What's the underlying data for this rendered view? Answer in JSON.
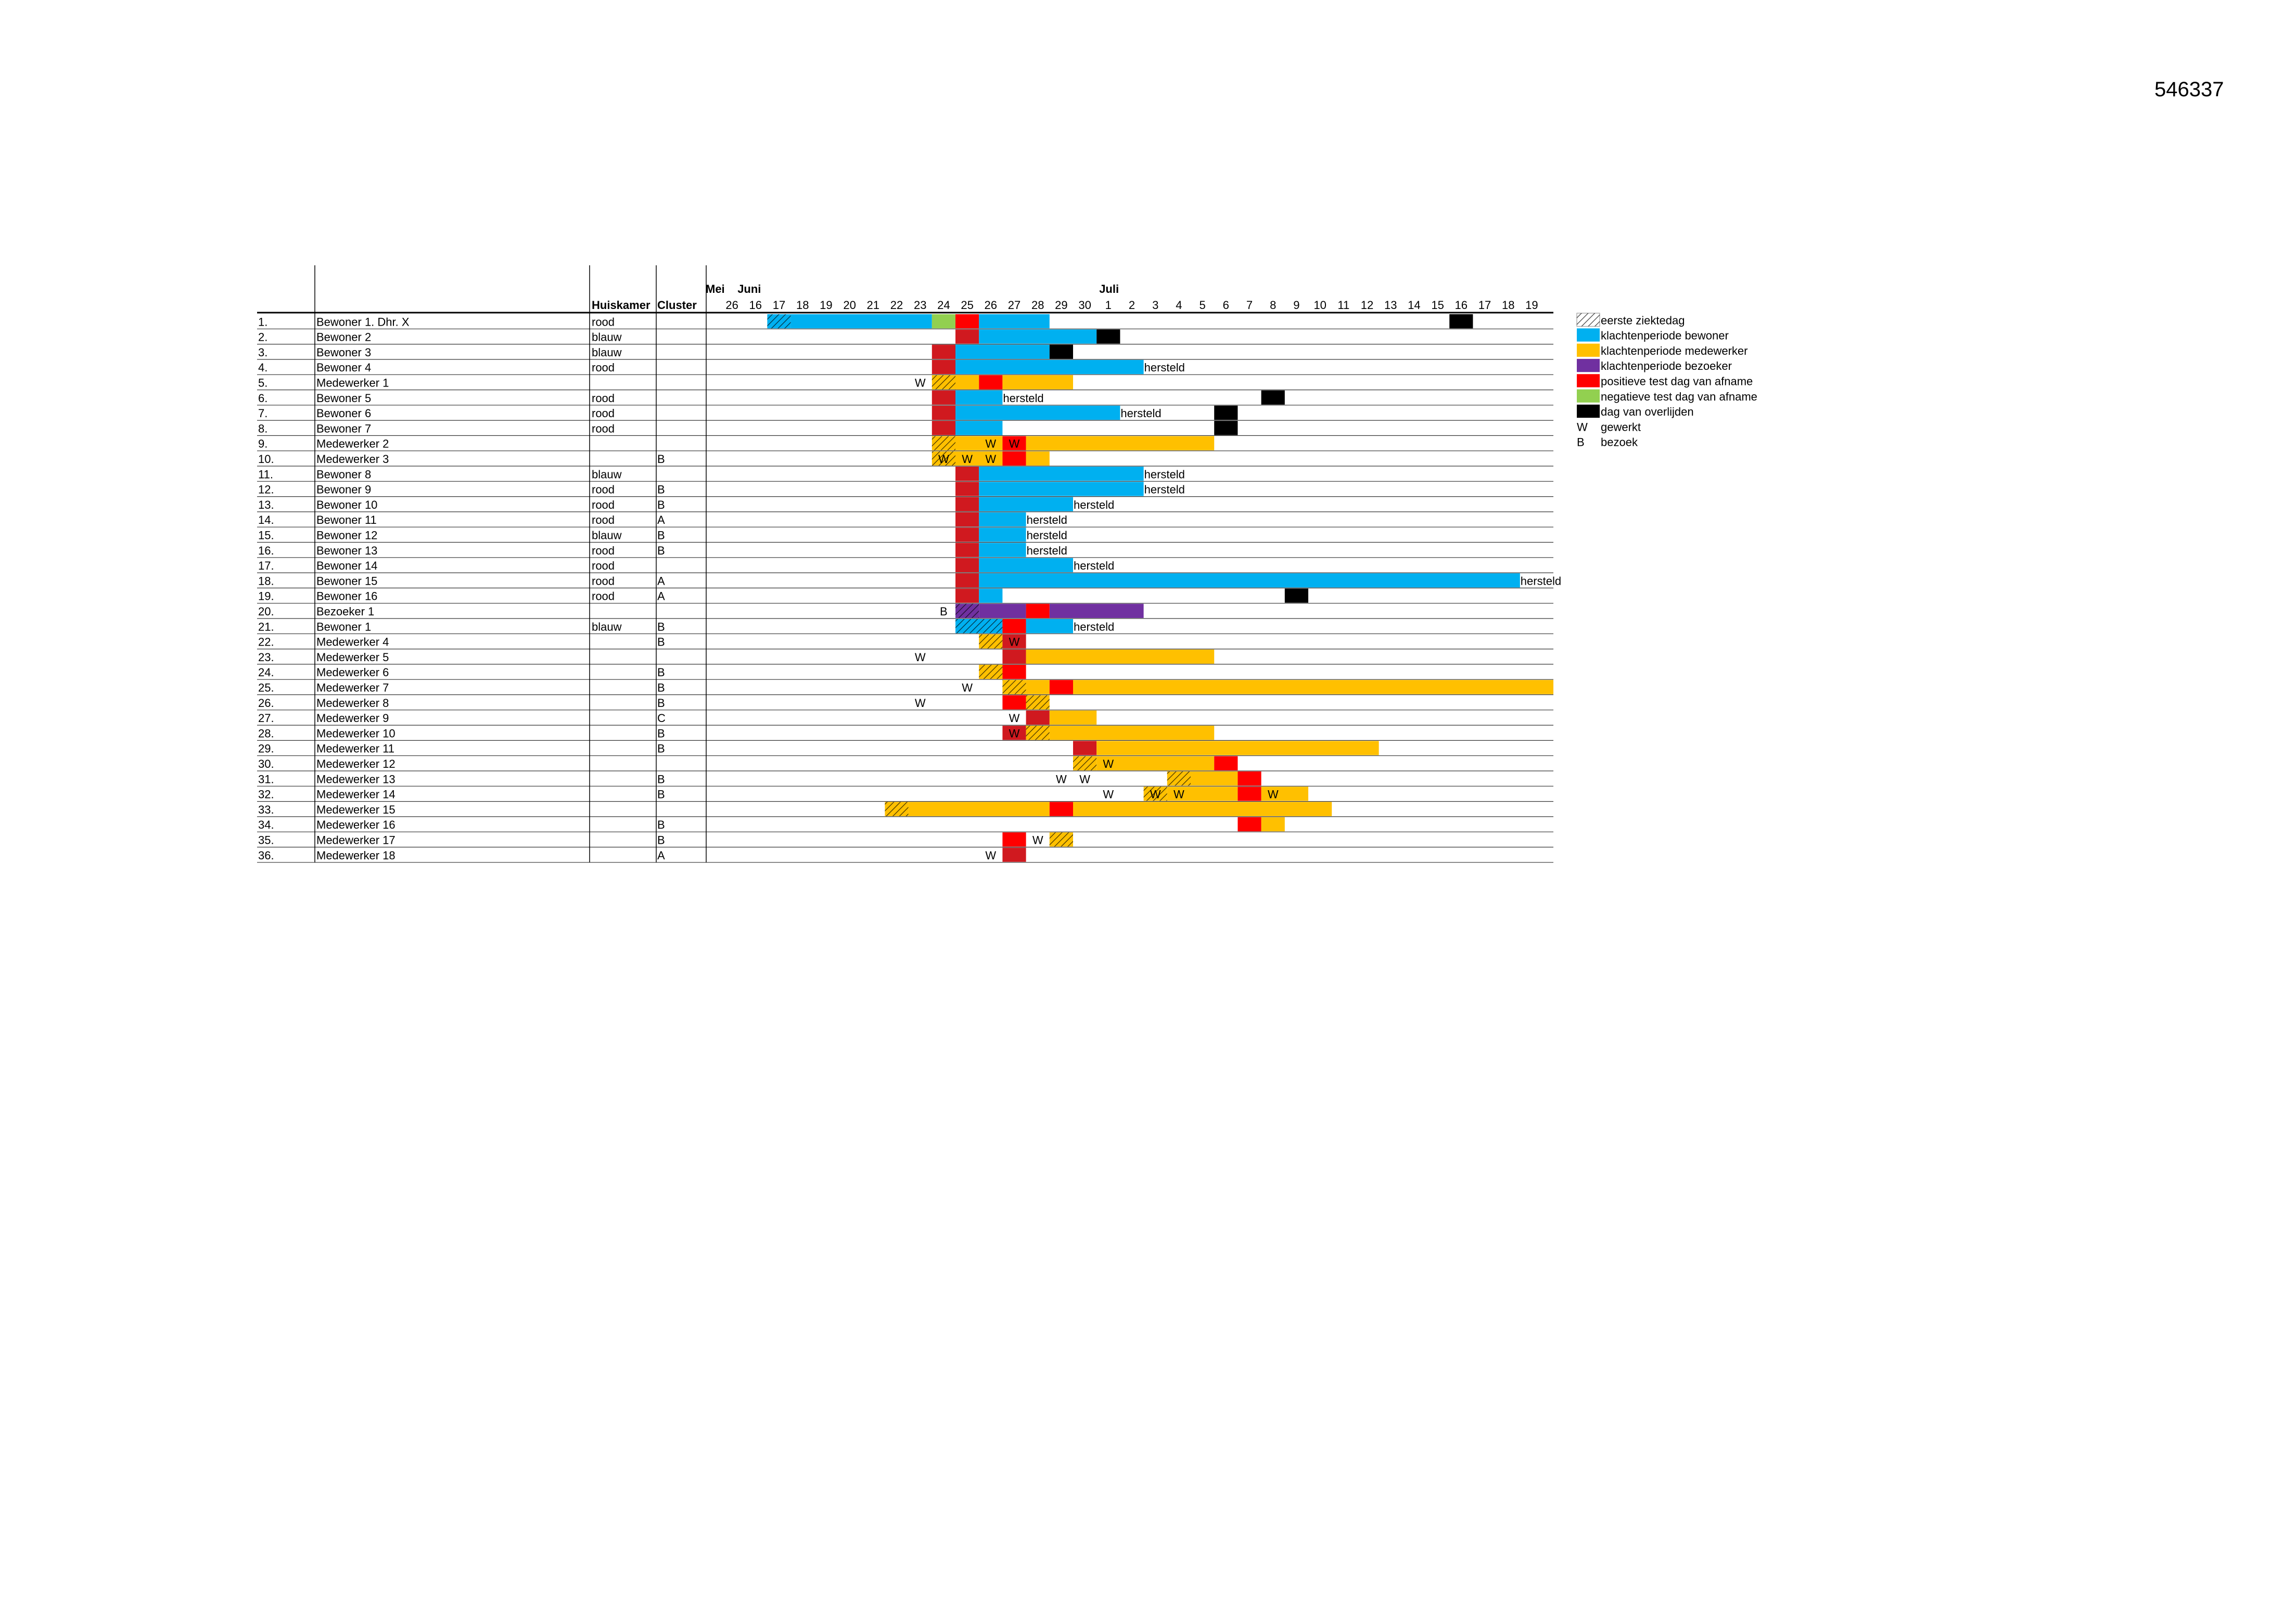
{
  "document_id": "546337",
  "chart_data": {
    "type": "gantt",
    "headers": {
      "huiskamer": "Huiskamer",
      "cluster": "Cluster"
    },
    "months": [
      {
        "label": "Mei",
        "day": 26
      },
      {
        "label": "Juni",
        "day": 16
      },
      {
        "label": "Juli",
        "day": 1
      }
    ],
    "days": [
      26,
      16,
      17,
      18,
      19,
      20,
      21,
      22,
      23,
      24,
      25,
      26,
      27,
      28,
      29,
      30,
      1,
      2,
      3,
      4,
      5,
      6,
      7,
      8,
      9,
      10,
      11,
      12,
      13,
      14,
      15,
      16,
      17,
      18,
      19
    ],
    "colors": {
      "bewoner": "#00B0F0",
      "medewerker": "#FFC000",
      "bezoeker": "#7030A0",
      "positief": "#FF0000",
      "positief_dark": "#D0191F",
      "negatief": "#92D050",
      "overlijden": "#000000"
    },
    "legend": [
      {
        "key": "eerste",
        "label": "eerste ziektedag"
      },
      {
        "key": "bewoner",
        "label": "klachtenperiode bewoner"
      },
      {
        "key": "medewerker",
        "label": "klachtenperiode medewerker"
      },
      {
        "key": "bezoeker",
        "label": "klachtenperiode bezoeker"
      },
      {
        "key": "positief",
        "label": "positieve test dag van afname"
      },
      {
        "key": "negatief",
        "label": "negatieve test dag van afname"
      },
      {
        "key": "overlijden",
        "label": "dag van overlijden"
      },
      {
        "key": "text",
        "symbol": "W",
        "label": "gewerkt"
      },
      {
        "key": "text",
        "symbol": "B",
        "label": "bezoek"
      }
    ],
    "rows": [
      {
        "num": "1.",
        "name": "Bewoner 1. Dhr. X",
        "huiskamer": "rood",
        "cluster": "",
        "bars": [
          [
            2,
            3,
            "bewoner",
            true
          ],
          [
            3,
            9,
            "bewoner"
          ],
          [
            9,
            10,
            "negatief"
          ],
          [
            10,
            11,
            "positief"
          ],
          [
            11,
            14,
            "bewoner"
          ],
          [
            31,
            32,
            "overlijden"
          ]
        ],
        "marks": []
      },
      {
        "num": "2.",
        "name": "Bewoner 2",
        "huiskamer": "blauw",
        "cluster": "",
        "bars": [
          [
            10,
            11,
            "positief_dark"
          ],
          [
            11,
            16,
            "bewoner"
          ],
          [
            16,
            17,
            "overlijden"
          ]
        ],
        "marks": []
      },
      {
        "num": "3.",
        "name": "Bewoner 3",
        "huiskamer": "blauw",
        "cluster": "",
        "bars": [
          [
            9,
            10,
            "positief_dark"
          ],
          [
            10,
            14,
            "bewoner"
          ],
          [
            14,
            15,
            "overlijden"
          ]
        ],
        "marks": []
      },
      {
        "num": "4.",
        "name": "Bewoner 4",
        "huiskamer": "rood",
        "cluster": "",
        "bars": [
          [
            9,
            10,
            "positief_dark"
          ],
          [
            10,
            18,
            "bewoner"
          ]
        ],
        "marks": [
          [
            18,
            "hersteld"
          ]
        ]
      },
      {
        "num": "5.",
        "name": "Medewerker 1",
        "huiskamer": "",
        "cluster": "",
        "bars": [
          [
            9,
            10,
            "medewerker",
            true
          ],
          [
            10,
            11,
            "medewerker"
          ],
          [
            11,
            12,
            "positief"
          ],
          [
            12,
            15,
            "medewerker"
          ]
        ],
        "marks": [
          [
            8,
            "W"
          ]
        ]
      },
      {
        "num": "6.",
        "name": "Bewoner 5",
        "huiskamer": "rood",
        "cluster": "",
        "bars": [
          [
            9,
            10,
            "positief_dark"
          ],
          [
            10,
            12,
            "bewoner"
          ],
          [
            23,
            24,
            "overlijden"
          ]
        ],
        "marks": [
          [
            12,
            "hersteld"
          ]
        ]
      },
      {
        "num": "7.",
        "name": "Bewoner 6",
        "huiskamer": "rood",
        "cluster": "",
        "bars": [
          [
            9,
            10,
            "positief_dark"
          ],
          [
            10,
            17,
            "bewoner"
          ],
          [
            21,
            22,
            "overlijden"
          ]
        ],
        "marks": [
          [
            17,
            "hersteld"
          ]
        ]
      },
      {
        "num": "8.",
        "name": "Bewoner 7",
        "huiskamer": "rood",
        "cluster": "",
        "bars": [
          [
            9,
            10,
            "positief_dark"
          ],
          [
            10,
            12,
            "bewoner"
          ],
          [
            21,
            22,
            "overlijden"
          ]
        ],
        "marks": []
      },
      {
        "num": "9.",
        "name": "Medewerker 2",
        "huiskamer": "",
        "cluster": "",
        "bars": [
          [
            9,
            10,
            "medewerker",
            true
          ],
          [
            10,
            12,
            "medewerker"
          ],
          [
            12,
            13,
            "positief"
          ],
          [
            13,
            21,
            "medewerker"
          ]
        ],
        "marks": [
          [
            11,
            "W"
          ],
          [
            12,
            "W"
          ]
        ]
      },
      {
        "num": "10.",
        "name": "Medewerker 3",
        "huiskamer": "",
        "cluster": "B",
        "bars": [
          [
            9,
            10,
            "medewerker",
            true
          ],
          [
            10,
            12,
            "medewerker"
          ],
          [
            12,
            13,
            "positief"
          ],
          [
            13,
            14,
            "medewerker"
          ]
        ],
        "marks": [
          [
            9,
            "W"
          ],
          [
            10,
            "W"
          ],
          [
            11,
            "W"
          ]
        ]
      },
      {
        "num": "11.",
        "name": "Bewoner 8",
        "huiskamer": "blauw",
        "cluster": "",
        "bars": [
          [
            10,
            11,
            "positief_dark"
          ],
          [
            11,
            18,
            "bewoner"
          ]
        ],
        "marks": [
          [
            18,
            "hersteld"
          ]
        ]
      },
      {
        "num": "12.",
        "name": "Bewoner 9",
        "huiskamer": "rood",
        "cluster": "B",
        "bars": [
          [
            10,
            11,
            "positief_dark"
          ],
          [
            11,
            18,
            "bewoner"
          ]
        ],
        "marks": [
          [
            18,
            "hersteld"
          ]
        ]
      },
      {
        "num": "13.",
        "name": "Bewoner 10",
        "huiskamer": "rood",
        "cluster": "B",
        "bars": [
          [
            10,
            11,
            "positief_dark"
          ],
          [
            11,
            15,
            "bewoner"
          ]
        ],
        "marks": [
          [
            15,
            "hersteld"
          ]
        ]
      },
      {
        "num": "14.",
        "name": "Bewoner 11",
        "huiskamer": "rood",
        "cluster": "A",
        "bars": [
          [
            10,
            11,
            "positief_dark"
          ],
          [
            11,
            13,
            "bewoner"
          ]
        ],
        "marks": [
          [
            13,
            "hersteld"
          ]
        ]
      },
      {
        "num": "15.",
        "name": "Bewoner 12",
        "huiskamer": "blauw",
        "cluster": "B",
        "bars": [
          [
            10,
            11,
            "positief_dark"
          ],
          [
            11,
            13,
            "bewoner"
          ]
        ],
        "marks": [
          [
            13,
            "hersteld"
          ]
        ]
      },
      {
        "num": "16.",
        "name": "Bewoner 13",
        "huiskamer": "rood",
        "cluster": "B",
        "bars": [
          [
            10,
            11,
            "positief_dark"
          ],
          [
            11,
            13,
            "bewoner"
          ]
        ],
        "marks": [
          [
            13,
            "hersteld"
          ]
        ]
      },
      {
        "num": "17.",
        "name": "Bewoner 14",
        "huiskamer": "rood",
        "cluster": "",
        "bars": [
          [
            10,
            11,
            "positief_dark"
          ],
          [
            11,
            15,
            "bewoner"
          ]
        ],
        "marks": [
          [
            15,
            "hersteld"
          ]
        ]
      },
      {
        "num": "18.",
        "name": "Bewoner 15",
        "huiskamer": "rood",
        "cluster": "A",
        "bars": [
          [
            10,
            11,
            "positief_dark"
          ],
          [
            11,
            34,
            "bewoner"
          ]
        ],
        "marks": [
          [
            34,
            "hersteld"
          ]
        ]
      },
      {
        "num": "19.",
        "name": "Bewoner 16",
        "huiskamer": "rood",
        "cluster": "A",
        "bars": [
          [
            10,
            11,
            "positief_dark"
          ],
          [
            11,
            12,
            "bewoner"
          ],
          [
            24,
            25,
            "overlijden"
          ]
        ],
        "marks": []
      },
      {
        "num": "20.",
        "name": "Bezoeker 1",
        "huiskamer": "",
        "cluster": "",
        "bars": [
          [
            10,
            11,
            "bezoeker",
            true
          ],
          [
            11,
            13,
            "bezoeker"
          ],
          [
            13,
            14,
            "positief"
          ],
          [
            14,
            18,
            "bezoeker"
          ]
        ],
        "marks": [
          [
            9,
            "B"
          ]
        ]
      },
      {
        "num": "21.",
        "name": "Bewoner 1",
        "huiskamer": "blauw",
        "cluster": "B",
        "bars": [
          [
            10,
            12,
            "bewoner",
            true
          ],
          [
            12,
            13,
            "positief"
          ],
          [
            13,
            15,
            "bewoner"
          ]
        ],
        "marks": [
          [
            15,
            "hersteld"
          ]
        ]
      },
      {
        "num": "22.",
        "name": "Medewerker 4",
        "huiskamer": "",
        "cluster": "B",
        "bars": [
          [
            11,
            12,
            "medewerker",
            true
          ],
          [
            12,
            13,
            "positief_dark"
          ]
        ],
        "marks": [
          [
            12,
            "W"
          ]
        ]
      },
      {
        "num": "23.",
        "name": "Medewerker 5",
        "huiskamer": "",
        "cluster": "",
        "bars": [
          [
            12,
            13,
            "positief_dark"
          ],
          [
            13,
            21,
            "medewerker"
          ]
        ],
        "marks": [
          [
            8,
            "W"
          ]
        ]
      },
      {
        "num": "24.",
        "name": "Medewerker 6",
        "huiskamer": "",
        "cluster": "B",
        "bars": [
          [
            11,
            12,
            "medewerker",
            true
          ],
          [
            12,
            13,
            "positief"
          ]
        ],
        "marks": []
      },
      {
        "num": "25.",
        "name": "Medewerker 7",
        "huiskamer": "",
        "cluster": "B",
        "bars": [
          [
            12,
            13,
            "medewerker",
            true
          ],
          [
            13,
            14,
            "medewerker"
          ],
          [
            14,
            15,
            "positief"
          ],
          [
            15,
            36,
            "medewerker"
          ]
        ],
        "marks": [
          [
            10,
            "W"
          ]
        ]
      },
      {
        "num": "26.",
        "name": "Medewerker 8",
        "huiskamer": "",
        "cluster": "B",
        "bars": [
          [
            12,
            13,
            "positief"
          ],
          [
            13,
            14,
            "medewerker",
            true
          ]
        ],
        "marks": [
          [
            8,
            "W"
          ]
        ]
      },
      {
        "num": "27.",
        "name": "Medewerker 9",
        "huiskamer": "",
        "cluster": "C",
        "bars": [
          [
            13,
            14,
            "positief_dark"
          ],
          [
            14,
            16,
            "medewerker"
          ]
        ],
        "marks": [
          [
            12,
            "W"
          ]
        ]
      },
      {
        "num": "28.",
        "name": "Medewerker 10",
        "huiskamer": "",
        "cluster": "B",
        "bars": [
          [
            12,
            13,
            "positief_dark"
          ],
          [
            13,
            14,
            "medewerker",
            true
          ],
          [
            14,
            21,
            "medewerker"
          ]
        ],
        "marks": [
          [
            12,
            "W"
          ]
        ]
      },
      {
        "num": "29.",
        "name": "Medewerker 11",
        "huiskamer": "",
        "cluster": "B",
        "bars": [
          [
            15,
            16,
            "positief_dark"
          ],
          [
            16,
            28,
            "medewerker"
          ]
        ],
        "marks": []
      },
      {
        "num": "30.",
        "name": "Medewerker 12",
        "huiskamer": "",
        "cluster": "",
        "bars": [
          [
            15,
            16,
            "medewerker",
            true
          ],
          [
            16,
            21,
            "medewerker"
          ],
          [
            21,
            22,
            "positief"
          ]
        ],
        "marks": [
          [
            16,
            "W"
          ]
        ]
      },
      {
        "num": "31.",
        "name": "Medewerker 13",
        "huiskamer": "",
        "cluster": "B",
        "bars": [
          [
            19,
            20,
            "medewerker",
            true
          ],
          [
            20,
            22,
            "medewerker"
          ],
          [
            22,
            23,
            "positief"
          ]
        ],
        "marks": [
          [
            14,
            "W"
          ],
          [
            15,
            "W"
          ]
        ]
      },
      {
        "num": "32.",
        "name": "Medewerker 14",
        "huiskamer": "",
        "cluster": "B",
        "bars": [
          [
            18,
            19,
            "medewerker",
            true
          ],
          [
            19,
            22,
            "medewerker"
          ],
          [
            22,
            23,
            "positief"
          ],
          [
            23,
            25,
            "medewerker"
          ]
        ],
        "marks": [
          [
            16,
            "W"
          ],
          [
            18,
            "W"
          ],
          [
            19,
            "W"
          ],
          [
            23,
            "W"
          ]
        ]
      },
      {
        "num": "33.",
        "name": "Medewerker 15",
        "huiskamer": "",
        "cluster": "",
        "bars": [
          [
            7,
            8,
            "medewerker",
            true
          ],
          [
            8,
            14,
            "medewerker"
          ],
          [
            14,
            15,
            "positief"
          ],
          [
            15,
            26,
            "medewerker"
          ]
        ],
        "marks": []
      },
      {
        "num": "34.",
        "name": "Medewerker 16",
        "huiskamer": "",
        "cluster": "B",
        "bars": [
          [
            22,
            23,
            "positief"
          ],
          [
            23,
            24,
            "medewerker"
          ]
        ],
        "marks": []
      },
      {
        "num": "35.",
        "name": "Medewerker 17",
        "huiskamer": "",
        "cluster": "B",
        "bars": [
          [
            12,
            13,
            "positief"
          ],
          [
            14,
            15,
            "medewerker",
            true
          ]
        ],
        "marks": [
          [
            13,
            "W"
          ]
        ]
      },
      {
        "num": "36.",
        "name": "Medewerker 18",
        "huiskamer": "",
        "cluster": "A",
        "bars": [
          [
            12,
            13,
            "positief_dark"
          ]
        ],
        "marks": [
          [
            11,
            "W"
          ]
        ]
      }
    ]
  }
}
